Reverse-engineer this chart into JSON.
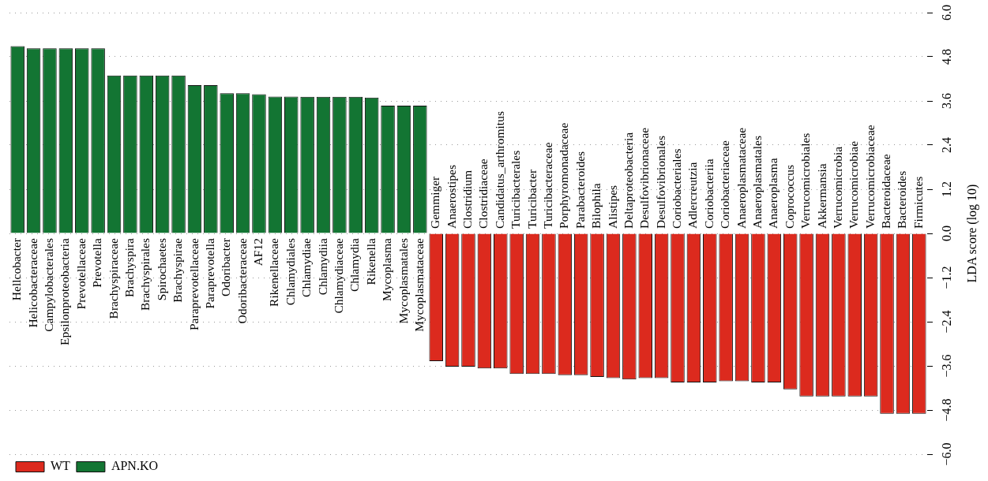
{
  "chart_data": {
    "type": "bar",
    "ylabel": "LDA score (log 10)",
    "categories": [
      "Hellcobacter",
      "Helicobacteraceae",
      "Campylobacterales",
      "Epsilonproteobacteria",
      "Prevotellaceae",
      "Prevotella",
      "Brachyspiraceae",
      "Brachyspira",
      "Brachyspirales",
      "Spirochaetes",
      "Brachyspirae",
      "Paraprevotellaceae",
      "Paraprevotella",
      "Odoribacter",
      "Odoribacteraceae",
      "AF12",
      "Rikenellaceae",
      "Chlamydiales",
      "Chlamydiae",
      "Chlamydiia",
      "Chlamydiaceae",
      "Chlamydia",
      "Rikenella",
      "Mycoplasma",
      "Mycoplasmatales",
      "Mycoplasmataceae",
      "Gemmiger",
      "Anaerostipes",
      "Clostridium",
      "Clostridiaceae",
      "Candidatus_arthromitus",
      "Turicibacterales",
      "Turicibacter",
      "Turicibacteraceae",
      "Porphyromonadaceae",
      "Parabacteroides",
      "Bilophila",
      "Alistipes",
      "Deltaproteobacteria",
      "Desulfovibrionaceae",
      "Desulfovibrionales",
      "Coriobacteriales",
      "Adlercreutzia",
      "Coriobacteriia",
      "Coriobacteriaceae",
      "Anaeroplasmataceae",
      "Anaeroplasmatales",
      "Anaeroplasma",
      "Coprococcus",
      "Verrucomicrobiales",
      "Akkermansia",
      "Verrucomicrobia",
      "Verrucomicrobiae",
      "Verrucomicrobiaceae",
      "Bacteroidaceae",
      "Bacteroides",
      "Firmicutes"
    ],
    "series": [
      {
        "name": "WT",
        "color": "#dc2a1e",
        "values": [
          null,
          null,
          null,
          null,
          null,
          null,
          null,
          null,
          null,
          null,
          null,
          null,
          null,
          null,
          null,
          null,
          null,
          null,
          null,
          null,
          null,
          null,
          null,
          null,
          null,
          null,
          -3.47,
          -3.62,
          -3.62,
          -3.67,
          -3.67,
          -3.82,
          -3.82,
          -3.82,
          -3.85,
          -3.85,
          -3.9,
          -3.93,
          -3.97,
          -3.93,
          -3.93,
          -4.05,
          -4.05,
          -4.05,
          -4.02,
          -4.02,
          -4.05,
          -4.05,
          -4.24,
          -4.43,
          -4.43,
          -4.43,
          -4.43,
          -4.43,
          -4.9,
          -4.9,
          -4.9
        ]
      },
      {
        "name": "APN.KO",
        "color": "#137533",
        "values": [
          5.09,
          5.03,
          5.03,
          5.03,
          5.03,
          5.03,
          4.29,
          4.29,
          4.29,
          4.29,
          4.29,
          4.03,
          4.03,
          3.81,
          3.81,
          3.78,
          3.72,
          3.72,
          3.71,
          3.71,
          3.71,
          3.71,
          3.69,
          3.47,
          3.47,
          3.47,
          null,
          null,
          null,
          null,
          null,
          null,
          null,
          null,
          null,
          null,
          null,
          null,
          null,
          null,
          null,
          null,
          null,
          null,
          null,
          null,
          null,
          null,
          null,
          null,
          null,
          null,
          null,
          null,
          null,
          null,
          null
        ]
      }
    ],
    "ylim": [
      -6.0,
      6.0
    ],
    "yticks": [
      {
        "value": -6.0,
        "label": "−6.0"
      },
      {
        "value": -4.8,
        "label": "−4.8"
      },
      {
        "value": -3.6,
        "label": "−3.6"
      },
      {
        "value": -2.4,
        "label": "−2.4"
      },
      {
        "value": -1.2,
        "label": "−1.2"
      },
      {
        "value": 0,
        "label": "0.0"
      },
      {
        "value": 1.2,
        "label": "1.2"
      },
      {
        "value": 2.4,
        "label": "2.4"
      },
      {
        "value": 3.6,
        "label": "3.6"
      },
      {
        "value": 4.8,
        "label": "4.8"
      },
      {
        "value": 6.0,
        "label": "6.0"
      }
    ],
    "grid": "y",
    "legend": "bottom left"
  }
}
